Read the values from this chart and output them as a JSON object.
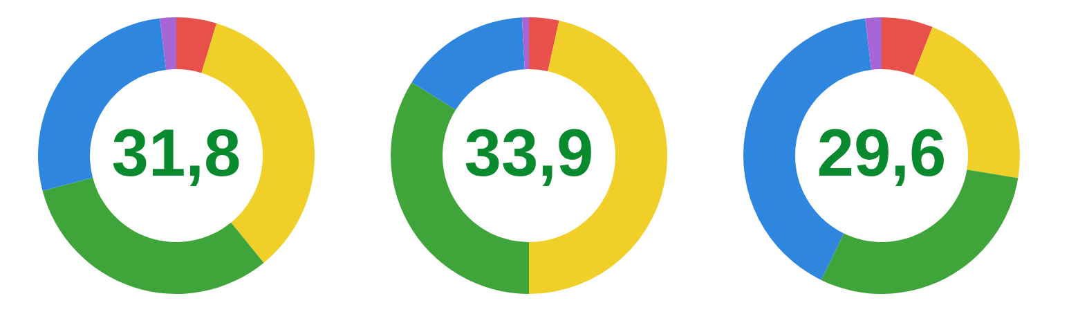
{
  "chart_data": [
    {
      "type": "donut",
      "categories": [
        null,
        null,
        null,
        null,
        null
      ],
      "values": [
        4.7,
        34.4,
        31.8,
        27.2,
        1.9
      ],
      "colors": [
        "#e8504a",
        "#f0cf28",
        "#3fa53a",
        "#2f86de",
        "#a865d6"
      ],
      "annotations": [
        "31,8"
      ]
    },
    {
      "type": "donut",
      "categories": [
        null,
        null,
        null,
        null,
        null
      ],
      "values": [
        3.5,
        46.5,
        33.9,
        15.3,
        0.8
      ],
      "colors": [
        "#e8504a",
        "#f0cf28",
        "#3fa53a",
        "#2f86de",
        "#a865d6"
      ],
      "annotations": [
        "33,9"
      ]
    },
    {
      "type": "donut",
      "categories": [
        null,
        null,
        null,
        null,
        null
      ],
      "values": [
        6.0,
        21.6,
        29.6,
        40.9,
        1.9
      ],
      "colors": [
        "#e8504a",
        "#f0cf28",
        "#3fa53a",
        "#2f86de",
        "#a865d6"
      ],
      "annotations": [
        "29,6"
      ]
    }
  ]
}
